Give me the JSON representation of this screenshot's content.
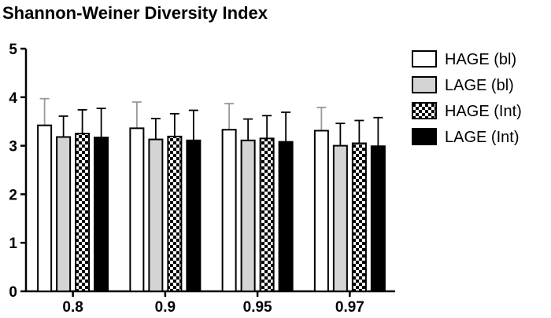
{
  "chart_data": {
    "type": "bar",
    "title": "Shannon-Weiner Diversity Index",
    "xlabel": "",
    "ylabel": "",
    "ylim": [
      0,
      5
    ],
    "yticks": [
      "0",
      "1",
      "2",
      "3",
      "4",
      "5"
    ],
    "categories": [
      "0.8",
      "0.9",
      "0.95",
      "0.97"
    ],
    "grid": false,
    "legend_position": "right",
    "series": [
      {
        "name": "HAGE (bl)",
        "values": [
          3.42,
          3.36,
          3.33,
          3.31
        ],
        "errors": [
          0.55,
          0.54,
          0.54,
          0.48
        ],
        "fill": "white",
        "error_color": "#999999"
      },
      {
        "name": "LAGE (bl)",
        "values": [
          3.18,
          3.13,
          3.11,
          3.0
        ],
        "errors": [
          0.43,
          0.43,
          0.44,
          0.46
        ],
        "fill": "gray",
        "error_color": "#000000"
      },
      {
        "name": "HAGE (Int)",
        "values": [
          3.25,
          3.19,
          3.15,
          3.05
        ],
        "errors": [
          0.49,
          0.47,
          0.47,
          0.47
        ],
        "fill": "checker",
        "error_color": "#000000"
      },
      {
        "name": "LAGE (Int)",
        "values": [
          3.17,
          3.11,
          3.08,
          2.99
        ],
        "errors": [
          0.6,
          0.62,
          0.61,
          0.59
        ],
        "fill": "black",
        "error_color": "#000000"
      }
    ],
    "colors": {
      "gray_fill": "#d4d4d4",
      "black_fill": "#000000",
      "white_fill": "#ffffff"
    }
  }
}
